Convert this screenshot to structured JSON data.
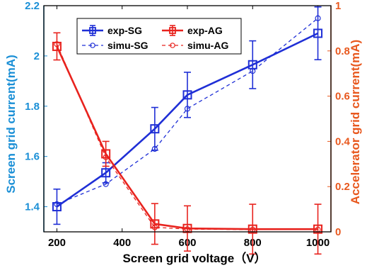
{
  "chart_data": {
    "type": "line",
    "xlabel": "Screen grid voltage（V）",
    "ylabel_left": "Screen grid current(mA)",
    "ylabel_right": "Accelerator grid current(mA)",
    "xlim": [
      160,
      1040
    ],
    "ylim_left": [
      1.3,
      2.2
    ],
    "ylim_right": [
      0,
      1
    ],
    "x_ticks": [
      200,
      400,
      600,
      800,
      1000
    ],
    "y_ticks_left": [
      1.4,
      1.6,
      1.8,
      2,
      2.2
    ],
    "y_ticks_right": [
      0,
      0.2,
      0.4,
      0.6,
      0.8,
      1
    ],
    "x_tick_labels": [
      "200",
      "400",
      "600",
      "800",
      "1000"
    ],
    "y_tick_labels_left": [
      "1.4",
      "1.6",
      "1.8",
      "2",
      "2.2"
    ],
    "y_tick_labels_right": [
      "0",
      "0.2",
      "0.4",
      "0.6",
      "0.8",
      "1"
    ],
    "legend_placement": "top-left",
    "colors": {
      "sg": "#1f2fd6",
      "ag": "#e8231e",
      "left_axis": "#1a8fd6",
      "right_axis": "#e8581e"
    },
    "series": [
      {
        "name": "exp-SG",
        "axis": "left",
        "style": "solid",
        "marker": "square",
        "color": "#1f2fd6",
        "x": [
          200,
          350,
          500,
          600,
          800,
          1000
        ],
        "y": [
          1.4,
          1.535,
          1.71,
          1.845,
          1.965,
          2.09
        ],
        "err": [
          0.07,
          0.04,
          0.085,
          0.09,
          0.095,
          0.105
        ]
      },
      {
        "name": "simu-SG",
        "axis": "left",
        "style": "dashed",
        "marker": "circle",
        "color": "#1f2fd6",
        "x": [
          200,
          350,
          500,
          600,
          800,
          1000
        ],
        "y": [
          1.41,
          1.49,
          1.63,
          1.79,
          1.94,
          2.15
        ]
      },
      {
        "name": "exp-AG",
        "axis": "right",
        "style": "solid",
        "marker": "square",
        "color": "#e8231e",
        "x": [
          200,
          350,
          500,
          600,
          800,
          1000
        ],
        "y": [
          0.82,
          0.345,
          0.035,
          0.015,
          0.012,
          0.012
        ],
        "err": [
          0.06,
          0.055,
          0.09,
          0.1,
          0.11,
          0.11
        ]
      },
      {
        "name": "simu-AG",
        "axis": "right",
        "style": "dashed",
        "marker": "circle",
        "color": "#e8231e",
        "x": [
          200,
          350,
          500,
          600,
          800,
          1000
        ],
        "y": [
          0.83,
          0.33,
          0.02,
          0.012,
          0.01,
          0.01
        ]
      }
    ]
  }
}
